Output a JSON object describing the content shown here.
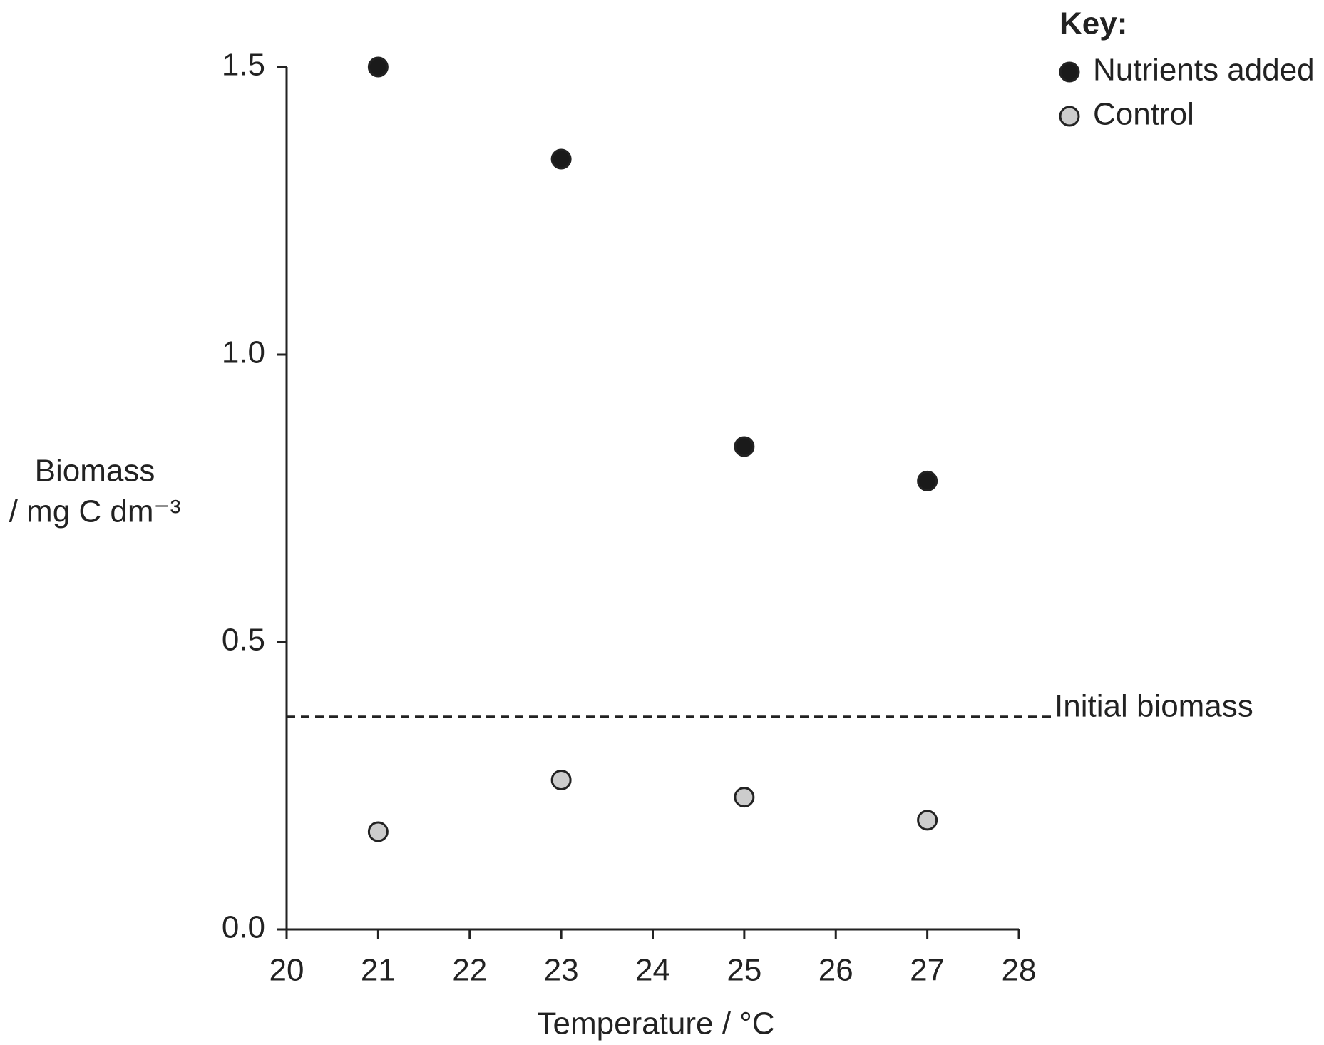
{
  "chart_data": {
    "type": "scatter",
    "x_label": "Temperature / °C",
    "y_label": [
      "Biomass",
      "/ mg C dm⁻³"
    ],
    "x": [
      21,
      23,
      25,
      27
    ],
    "series": [
      {
        "name": "Nutrients added",
        "color": "#1a1a1a",
        "values": [
          1.5,
          1.34,
          0.84,
          0.78
        ]
      },
      {
        "name": "Control",
        "color": "#cccccc",
        "values": [
          0.17,
          0.26,
          0.23,
          0.19
        ]
      }
    ],
    "xlim": [
      20,
      28
    ],
    "xticks": [
      20,
      21,
      22,
      23,
      24,
      25,
      26,
      27,
      28
    ],
    "ylim": [
      0,
      1.5
    ],
    "yticks": [
      {
        "value": 0,
        "label": "0.0"
      },
      {
        "value": 0.5,
        "label": "0.5"
      },
      {
        "value": 1,
        "label": "1.0"
      },
      {
        "value": 1.5,
        "label": "1.5"
      }
    ],
    "reference_lines": [
      {
        "value": 0.37,
        "label": "Initial biomass",
        "style": "dashed"
      }
    ],
    "legend": {
      "title": "Key:",
      "position": "top-right"
    },
    "grid": false
  }
}
